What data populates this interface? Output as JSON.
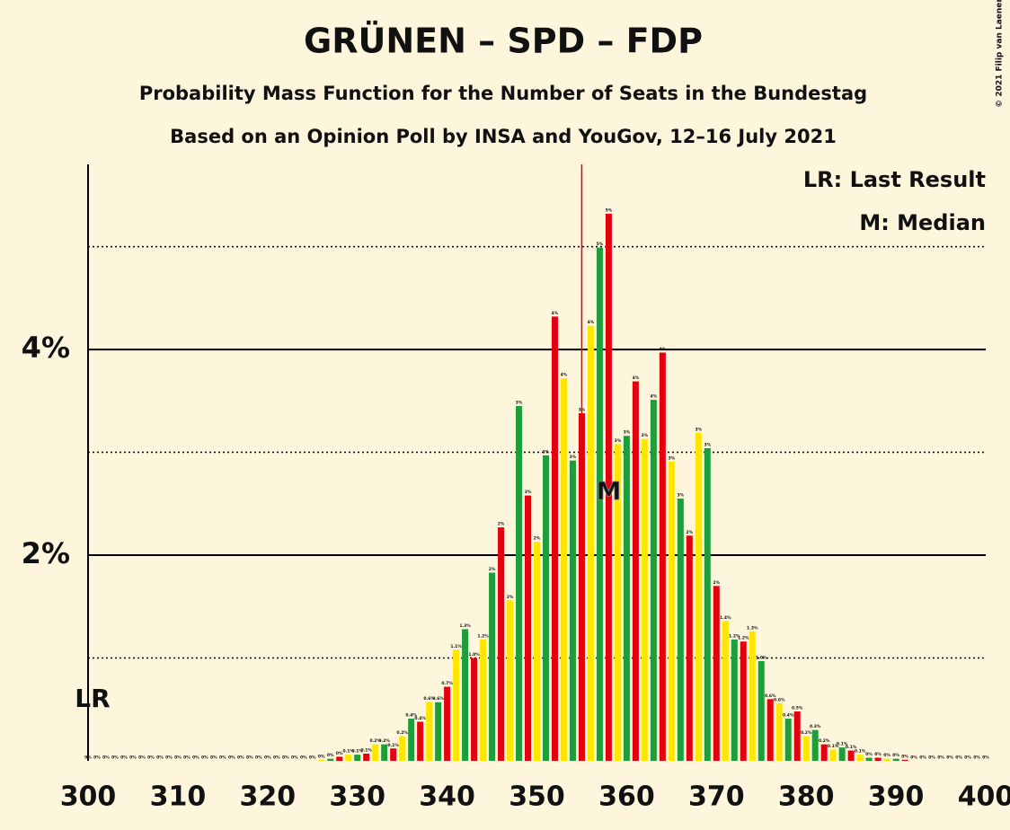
{
  "chart_data": {
    "type": "bar",
    "title": "GRÜNEN – SPD – FDP",
    "subtitle": "Probability Mass Function for the Number of Seats in the Bundestag",
    "subtitle2": "Based on an Opinion Poll by INSA and YouGov, 12–16 July 2021",
    "copyright": "© 2021 Filip van Laenen",
    "legend": [
      "LR: Last Result",
      "M: Median"
    ],
    "legend_position": "top-right",
    "colors": [
      "#1e9e3a",
      "#e3000f",
      "#ffe600"
    ],
    "x": [
      300,
      301,
      302,
      303,
      304,
      305,
      306,
      307,
      308,
      309,
      310,
      311,
      312,
      313,
      314,
      315,
      316,
      317,
      318,
      319,
      320,
      321,
      322,
      323,
      324,
      325,
      326,
      327,
      328,
      329,
      330,
      331,
      332,
      333,
      334,
      335,
      336,
      337,
      338,
      339,
      340,
      341,
      342,
      343,
      344,
      345,
      346,
      347,
      348,
      349,
      350,
      351,
      352,
      353,
      354,
      355,
      356,
      357,
      358,
      359,
      360,
      361,
      362,
      363,
      364,
      365,
      366,
      367,
      368,
      369,
      370,
      371,
      372,
      373,
      374,
      375,
      376,
      377,
      378,
      379,
      380,
      381,
      382,
      383,
      384,
      385,
      386,
      387,
      388,
      389,
      390,
      391,
      392,
      393,
      394,
      395,
      396,
      397,
      398,
      399,
      400
    ],
    "values": [
      0,
      0,
      0,
      0,
      0,
      0,
      0,
      0,
      0,
      0,
      0,
      0,
      0,
      0,
      0,
      0,
      0,
      0,
      0,
      0,
      0,
      0,
      0,
      0,
      0,
      0,
      0.01,
      0.02,
      0.04,
      0.06,
      0.06,
      0.07,
      0.16,
      0.16,
      0.12,
      0.24,
      0.41,
      0.38,
      0.57,
      0.57,
      0.72,
      1.08,
      1.28,
      1.0,
      1.18,
      1.83,
      2.27,
      1.56,
      3.45,
      2.58,
      2.13,
      2.97,
      4.32,
      3.72,
      2.92,
      3.38,
      4.23,
      4.99,
      5.32,
      3.08,
      3.16,
      3.69,
      3.13,
      3.51,
      3.97,
      2.91,
      2.55,
      2.19,
      3.19,
      3.04,
      1.7,
      1.36,
      1.18,
      1.16,
      1.26,
      0.97,
      0.6,
      0.56,
      0.41,
      0.48,
      0.24,
      0.3,
      0.16,
      0.11,
      0.13,
      0.1,
      0.06,
      0.03,
      0.03,
      0.02,
      0.02,
      0.01,
      0,
      0,
      0,
      0,
      0,
      0,
      0,
      0,
      0
    ],
    "value_labels": [
      "0%",
      "0%",
      "0%",
      "0%",
      "0%",
      "0%",
      "0%",
      "0%",
      "0%",
      "0%",
      "0%",
      "0%",
      "0%",
      "0%",
      "0%",
      "0%",
      "0%",
      "0%",
      "0%",
      "0%",
      "0%",
      "0%",
      "0%",
      "0%",
      "0%",
      "0%",
      "0%",
      "0%",
      "0%",
      "0.1%",
      "0.1%",
      "0.1%",
      "0.2%",
      "0.2%",
      "0.1%",
      "0.2%",
      "0.4%",
      "0.4%",
      "0.6%",
      "0.6%",
      "0.7%",
      "1.1%",
      "1.3%",
      "1.0%",
      "1.2%",
      "2%",
      "2%",
      "2%",
      "3%",
      "3%",
      "2%",
      "3%",
      "4%",
      "4%",
      "3%",
      "3%",
      "4%",
      "5%",
      "5%",
      "3%",
      "3%",
      "4%",
      "3%",
      "4%",
      "4%",
      "3%",
      "3%",
      "2%",
      "3%",
      "3%",
      "2%",
      "1.4%",
      "1.2%",
      "1.2%",
      "1.3%",
      "1.0%",
      "0.6%",
      "0.6%",
      "0.4%",
      "0.5%",
      "0.2%",
      "0.3%",
      "0.2%",
      "0.1%",
      "0.1%",
      "0.1%",
      "0.1%",
      "0%",
      "0%",
      "0%",
      "0%",
      "0%",
      "0%",
      "0%",
      "0%",
      "0%",
      "0%",
      "0%",
      "0%",
      "0%",
      "0%"
    ],
    "xlim": [
      300,
      400
    ],
    "xticks": [
      300,
      310,
      320,
      330,
      340,
      350,
      360,
      370,
      380,
      390,
      400
    ],
    "ylim": [
      0,
      5.8
    ],
    "yticks": [
      {
        "value": 2,
        "label": "2%"
      },
      {
        "value": 4,
        "label": "4%"
      }
    ],
    "dotted_grid": [
      1,
      3,
      5
    ],
    "majority": 355,
    "median": 358,
    "median_label": "M",
    "last_result": 300,
    "last_result_label": "LR"
  }
}
